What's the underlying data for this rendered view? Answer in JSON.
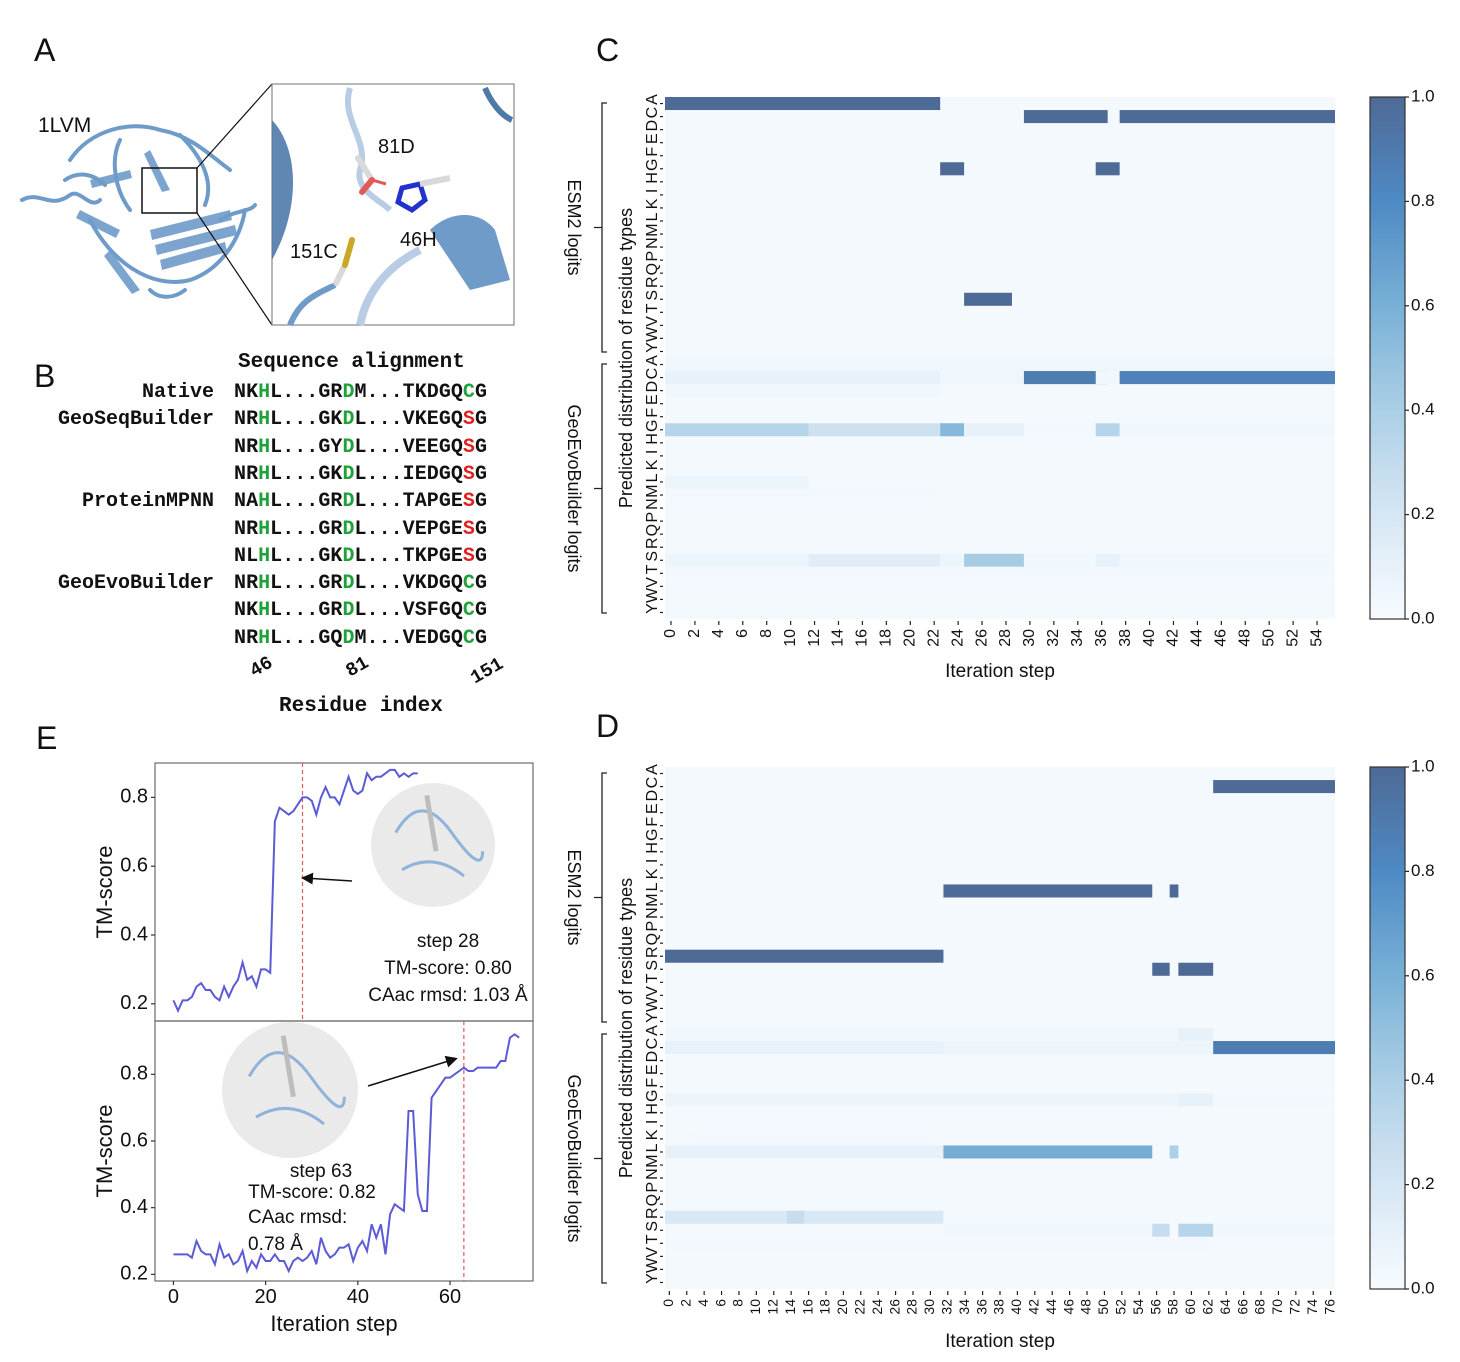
{
  "panels": {
    "A": "A",
    "B": "B",
    "C": "C",
    "D": "D",
    "E": "E"
  },
  "panel_a": {
    "protein_label": "1LVM",
    "residue_labels": [
      "81D",
      "46H",
      "151C"
    ],
    "colors": {
      "cartoon": "#6f9bc9",
      "cartoon_dark": "#4f7aa8",
      "stick": "#d9d9d9",
      "oxygen": "#e05a5a",
      "nitrogen": "#2233cc",
      "sulfur": "#c9a825"
    }
  },
  "panel_b": {
    "title": "Sequence alignment",
    "xlabel": "Residue index",
    "index_ticks": [
      "46",
      "81",
      "151"
    ],
    "colors": {
      "conserved": "#1fa23a",
      "mutated": "#e02020",
      "normal": "#111111"
    },
    "rows": [
      {
        "label": "Native",
        "seq": "NKHL...GRDM...TKDGQCG",
        "mut151": false
      },
      {
        "label": "GeoSeqBuilder",
        "seq": "NRHL...GKDL...VKEGQSG",
        "mut151": true
      },
      {
        "label": "",
        "seq": "NRHL...GYDL...VEEGQSG",
        "mut151": true
      },
      {
        "label": "",
        "seq": "NRHL...GKDL...IEDGQSG",
        "mut151": true
      },
      {
        "label": "ProteinMPNN",
        "seq": "NAHL...GRDL...TAPGESG",
        "mut151": true
      },
      {
        "label": "",
        "seq": "NRHL...GRDL...VEPGESG",
        "mut151": true
      },
      {
        "label": "",
        "seq": "NLHL...GKDL...TKPGESG",
        "mut151": true
      },
      {
        "label": "GeoEvoBuilder",
        "seq": "NRHL...GRDL...VKDGQCG",
        "mut151": false
      },
      {
        "label": "",
        "seq": "NKHL...GRDL...VSFGQCG",
        "mut151": false
      },
      {
        "label": "",
        "seq": "NRHL...GQDM...VEDGQCG",
        "mut151": false
      }
    ]
  },
  "chart_data": [
    {
      "id": "C",
      "type": "heatmap",
      "title": "",
      "xlabel": "Iteration step",
      "ylabel": "Predicted distribution of residue types",
      "group_labels": [
        "ESM2 logits",
        "GeoEvoBuilder logits"
      ],
      "residues": [
        "A",
        "C",
        "D",
        "E",
        "F",
        "G",
        "H",
        "I",
        "K",
        "L",
        "M",
        "N",
        "P",
        "Q",
        "R",
        "S",
        "T",
        "V",
        "W",
        "Y"
      ],
      "n_steps": 56,
      "x_tick_step": 2,
      "colorbar": {
        "min": 0.0,
        "max": 1.0,
        "ticks": [
          "0.0",
          "0.2",
          "0.4",
          "0.6",
          "0.8",
          "1.0"
        ]
      },
      "background": 0.02,
      "esm2": [
        {
          "res": "A",
          "from": 0,
          "to": 22,
          "v": 1.0
        },
        {
          "res": "C",
          "from": 30,
          "to": 36,
          "v": 1.0
        },
        {
          "res": "C",
          "from": 38,
          "to": 55,
          "v": 1.0
        },
        {
          "res": "G",
          "from": 23,
          "to": 24,
          "v": 1.0
        },
        {
          "res": "G",
          "from": 36,
          "to": 37,
          "v": 1.0
        },
        {
          "res": "S",
          "from": 25,
          "to": 28,
          "v": 1.0
        }
      ],
      "geoevo": [
        {
          "res": "A",
          "from": 0,
          "to": 55,
          "v": 0.05
        },
        {
          "res": "C",
          "from": 0,
          "to": 22,
          "v": 0.1
        },
        {
          "res": "C",
          "from": 23,
          "to": 29,
          "v": 0.05
        },
        {
          "res": "C",
          "from": 30,
          "to": 36,
          "v": 0.88
        },
        {
          "res": "C",
          "from": 36,
          "to": 37,
          "v": 0.04
        },
        {
          "res": "C",
          "from": 38,
          "to": 55,
          "v": 0.85
        },
        {
          "res": "D",
          "from": 0,
          "to": 22,
          "v": 0.04
        },
        {
          "res": "G",
          "from": 0,
          "to": 11,
          "v": 0.35
        },
        {
          "res": "G",
          "from": 12,
          "to": 22,
          "v": 0.24
        },
        {
          "res": "G",
          "from": 23,
          "to": 24,
          "v": 0.55
        },
        {
          "res": "G",
          "from": 25,
          "to": 29,
          "v": 0.1
        },
        {
          "res": "G",
          "from": 30,
          "to": 35,
          "v": 0.03
        },
        {
          "res": "G",
          "from": 36,
          "to": 37,
          "v": 0.35
        },
        {
          "res": "G",
          "from": 38,
          "to": 55,
          "v": 0.04
        },
        {
          "res": "L",
          "from": 0,
          "to": 11,
          "v": 0.06
        },
        {
          "res": "M",
          "from": 0,
          "to": 22,
          "v": 0.03
        },
        {
          "res": "S",
          "from": 0,
          "to": 11,
          "v": 0.06
        },
        {
          "res": "S",
          "from": 12,
          "to": 22,
          "v": 0.14
        },
        {
          "res": "S",
          "from": 23,
          "to": 24,
          "v": 0.06
        },
        {
          "res": "S",
          "from": 25,
          "to": 29,
          "v": 0.42
        },
        {
          "res": "S",
          "from": 30,
          "to": 35,
          "v": 0.04
        },
        {
          "res": "S",
          "from": 36,
          "to": 37,
          "v": 0.1
        },
        {
          "res": "S",
          "from": 38,
          "to": 55,
          "v": 0.04
        },
        {
          "res": "T",
          "from": 0,
          "to": 55,
          "v": 0.03
        }
      ]
    },
    {
      "id": "D",
      "type": "heatmap",
      "title": "",
      "xlabel": "Iteration step",
      "ylabel": "Predicted distribution of residue types",
      "group_labels": [
        "ESM2 logits",
        "GeoEvoBuilder logits"
      ],
      "residues": [
        "A",
        "C",
        "D",
        "E",
        "F",
        "G",
        "H",
        "I",
        "K",
        "L",
        "M",
        "N",
        "P",
        "Q",
        "R",
        "S",
        "T",
        "V",
        "W",
        "Y"
      ],
      "n_steps": 77,
      "x_tick_step": 2,
      "colorbar": {
        "min": 0.0,
        "max": 1.0,
        "ticks": [
          "0.0",
          "0.2",
          "0.4",
          "0.6",
          "0.8",
          "1.0"
        ]
      },
      "background": 0.02,
      "esm2": [
        {
          "res": "C",
          "from": 63,
          "to": 76,
          "v": 1.0
        },
        {
          "res": "L",
          "from": 32,
          "to": 55,
          "v": 1.0
        },
        {
          "res": "L",
          "from": 58,
          "to": 58,
          "v": 1.0
        },
        {
          "res": "R",
          "from": 0,
          "to": 31,
          "v": 1.0
        },
        {
          "res": "S",
          "from": 56,
          "to": 57,
          "v": 1.0
        },
        {
          "res": "S",
          "from": 59,
          "to": 62,
          "v": 1.0
        }
      ],
      "geoevo": [
        {
          "res": "A",
          "from": 0,
          "to": 62,
          "v": 0.04
        },
        {
          "res": "A",
          "from": 59,
          "to": 62,
          "v": 0.1
        },
        {
          "res": "C",
          "from": 0,
          "to": 31,
          "v": 0.1
        },
        {
          "res": "C",
          "from": 32,
          "to": 62,
          "v": 0.06
        },
        {
          "res": "C",
          "from": 63,
          "to": 76,
          "v": 0.88
        },
        {
          "res": "G",
          "from": 0,
          "to": 62,
          "v": 0.06
        },
        {
          "res": "G",
          "from": 59,
          "to": 62,
          "v": 0.1
        },
        {
          "res": "G",
          "from": 63,
          "to": 76,
          "v": 0.03
        },
        {
          "res": "L",
          "from": 0,
          "to": 31,
          "v": 0.1
        },
        {
          "res": "L",
          "from": 32,
          "to": 55,
          "v": 0.62
        },
        {
          "res": "L",
          "from": 58,
          "to": 58,
          "v": 0.4
        },
        {
          "res": "K",
          "from": 3,
          "to": 30,
          "v": 0.03
        },
        {
          "res": "R",
          "from": 0,
          "to": 31,
          "v": 0.18
        },
        {
          "res": "R",
          "from": 14,
          "to": 15,
          "v": 0.28
        },
        {
          "res": "S",
          "from": 32,
          "to": 55,
          "v": 0.04
        },
        {
          "res": "S",
          "from": 56,
          "to": 57,
          "v": 0.28
        },
        {
          "res": "S",
          "from": 59,
          "to": 62,
          "v": 0.35
        },
        {
          "res": "S",
          "from": 63,
          "to": 76,
          "v": 0.04
        },
        {
          "res": "T",
          "from": 0,
          "to": 62,
          "v": 0.03
        }
      ]
    },
    {
      "id": "E-top",
      "type": "line",
      "xlabel": "",
      "ylabel": "TM-score",
      "ylim": [
        0.15,
        0.9
      ],
      "xlim": [
        -4,
        78
      ],
      "yticks": [
        "0.2",
        "0.4",
        "0.6",
        "0.8"
      ],
      "line_color": "#5b5bd6",
      "marker_line_color": "#e05a5a",
      "marker_x": 28,
      "annotation": [
        "step 28",
        "TM-score: 0.80",
        "CAac rmsd: 1.03 Å"
      ],
      "x": [
        0,
        1,
        2,
        3,
        4,
        5,
        6,
        7,
        8,
        9,
        10,
        11,
        12,
        13,
        14,
        15,
        16,
        17,
        18,
        19,
        20,
        21,
        22,
        23,
        24,
        25,
        26,
        27,
        28,
        29,
        30,
        31,
        32,
        33,
        34,
        35,
        36,
        37,
        38,
        39,
        40,
        41,
        42,
        43,
        44,
        45,
        46,
        47,
        48,
        49,
        50,
        51,
        52,
        53
      ],
      "y": [
        0.21,
        0.18,
        0.21,
        0.21,
        0.22,
        0.25,
        0.26,
        0.24,
        0.24,
        0.22,
        0.21,
        0.25,
        0.22,
        0.25,
        0.27,
        0.32,
        0.27,
        0.28,
        0.25,
        0.3,
        0.3,
        0.29,
        0.73,
        0.77,
        0.76,
        0.75,
        0.76,
        0.78,
        0.8,
        0.8,
        0.79,
        0.75,
        0.8,
        0.83,
        0.8,
        0.8,
        0.78,
        0.82,
        0.86,
        0.82,
        0.81,
        0.82,
        0.87,
        0.85,
        0.86,
        0.86,
        0.87,
        0.88,
        0.88,
        0.86,
        0.87,
        0.86,
        0.87,
        0.87
      ]
    },
    {
      "id": "E-bottom",
      "type": "line",
      "xlabel": "Iteration step",
      "ylabel": "TM-score",
      "ylim": [
        0.18,
        0.96
      ],
      "xlim": [
        -4,
        78
      ],
      "xticks": [
        "0",
        "20",
        "40",
        "60"
      ],
      "yticks": [
        "0.2",
        "0.4",
        "0.6",
        "0.8"
      ],
      "line_color": "#5b5bd6",
      "marker_line_color": "#e05a5a",
      "marker_x": 63,
      "annotation": [
        "step 63",
        "TM-score: 0.82",
        "CAac rmsd:",
        "0.78 Å"
      ],
      "x": [
        0,
        1,
        2,
        3,
        4,
        5,
        6,
        7,
        8,
        9,
        10,
        11,
        12,
        13,
        14,
        15,
        16,
        17,
        18,
        19,
        20,
        21,
        22,
        23,
        24,
        25,
        26,
        27,
        28,
        29,
        30,
        31,
        32,
        33,
        34,
        35,
        36,
        37,
        38,
        39,
        40,
        41,
        42,
        43,
        44,
        45,
        46,
        47,
        48,
        49,
        50,
        51,
        52,
        53,
        54,
        55,
        56,
        57,
        58,
        59,
        60,
        61,
        62,
        63,
        64,
        65,
        66,
        67,
        68,
        69,
        70,
        71,
        72,
        73,
        74,
        75
      ],
      "y": [
        0.26,
        0.26,
        0.26,
        0.26,
        0.25,
        0.3,
        0.27,
        0.26,
        0.26,
        0.23,
        0.29,
        0.25,
        0.26,
        0.23,
        0.24,
        0.27,
        0.21,
        0.24,
        0.22,
        0.26,
        0.24,
        0.24,
        0.26,
        0.24,
        0.24,
        0.21,
        0.24,
        0.25,
        0.24,
        0.25,
        0.27,
        0.23,
        0.31,
        0.27,
        0.25,
        0.26,
        0.28,
        0.28,
        0.29,
        0.24,
        0.28,
        0.3,
        0.27,
        0.35,
        0.31,
        0.35,
        0.26,
        0.38,
        0.41,
        0.4,
        0.39,
        0.69,
        0.69,
        0.44,
        0.39,
        0.39,
        0.73,
        0.75,
        0.77,
        0.79,
        0.79,
        0.8,
        0.81,
        0.82,
        0.81,
        0.81,
        0.82,
        0.82,
        0.82,
        0.82,
        0.82,
        0.84,
        0.84,
        0.91,
        0.92,
        0.91
      ]
    }
  ]
}
